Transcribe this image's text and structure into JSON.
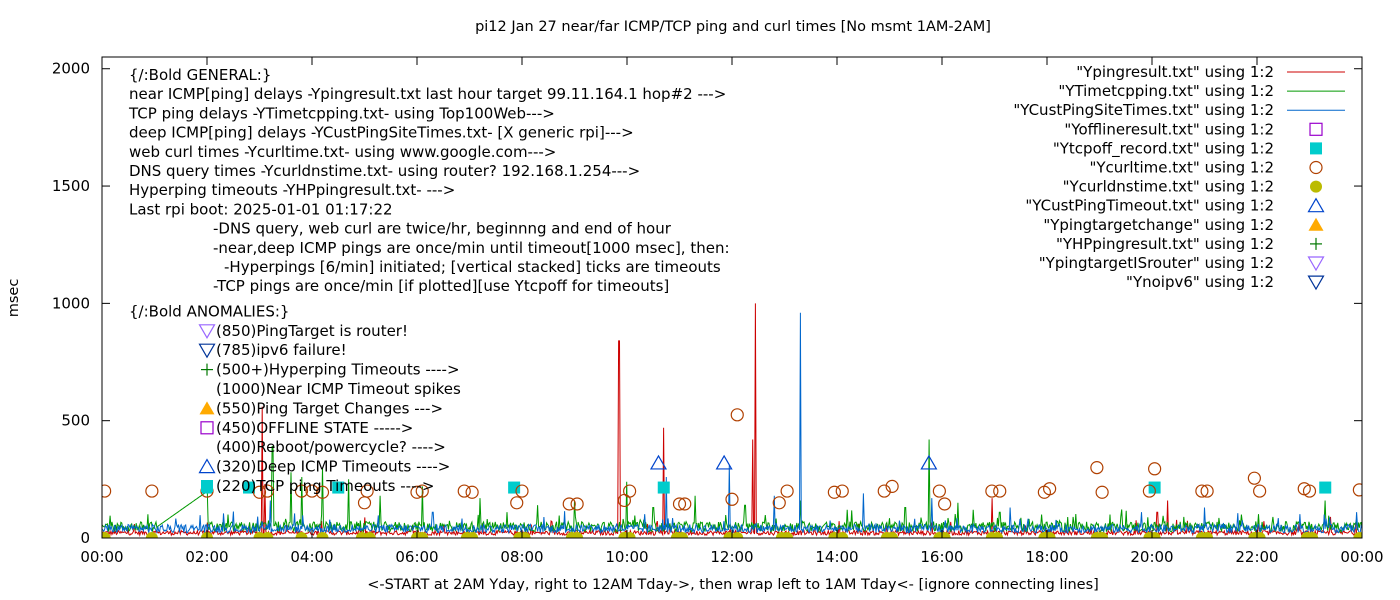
{
  "chart_data": {
    "type": "line",
    "title": "pi12  Jan 27  near/far ICMP/TCP ping and curl times [No msmt 1AM-2AM]",
    "xlabel": "<-START at 2AM Yday, right to 12AM Tday->, then wrap left to 1AM Tday<- [ignore connecting lines]",
    "ylabel": "msec",
    "xlim": [
      0,
      24
    ],
    "ylim": [
      0,
      2050
    ],
    "x_ticks": [
      "00:00",
      "02:00",
      "04:00",
      "06:00",
      "08:00",
      "10:00",
      "12:00",
      "14:00",
      "16:00",
      "18:00",
      "20:00",
      "22:00",
      "00:00"
    ],
    "y_ticks": [
      "0",
      "500",
      "1000",
      "1500",
      "2000"
    ],
    "legend_position": "top-right",
    "series": [
      {
        "name": "\"Ypingresult.txt\" using 1:2",
        "kind": "line",
        "color": "#cc0000",
        "baseline": 22,
        "spikes": [
          [
            3.05,
            560
          ],
          [
            3.1,
            230
          ],
          [
            9.85,
            840
          ],
          [
            10.7,
            470
          ],
          [
            12.45,
            1000
          ],
          [
            12.4,
            420
          ],
          [
            16.95,
            170
          ],
          [
            20.3,
            160
          ],
          [
            20.1,
            110
          ],
          [
            23.4,
            90
          ]
        ]
      },
      {
        "name": "\"YTimetcpping.txt\" using 1:2",
        "kind": "line",
        "color": "#009900",
        "baseline": 48,
        "spikes": [
          [
            0.1,
            60
          ],
          [
            2.0,
            200
          ],
          [
            2.4,
            100
          ],
          [
            3.25,
            390
          ],
          [
            3.6,
            280
          ],
          [
            3.8,
            260
          ],
          [
            4.2,
            300
          ],
          [
            4.7,
            250
          ],
          [
            5.3,
            180
          ],
          [
            6.1,
            220
          ],
          [
            7.2,
            170
          ],
          [
            8.3,
            140
          ],
          [
            9.0,
            160
          ],
          [
            10.0,
            240
          ],
          [
            10.5,
            130
          ],
          [
            11.3,
            180
          ],
          [
            12.25,
            140
          ],
          [
            13.3,
            160
          ],
          [
            14.2,
            120
          ],
          [
            15.3,
            130
          ],
          [
            15.75,
            420
          ],
          [
            16.3,
            150
          ],
          [
            16.6,
            120
          ],
          [
            17.1,
            110
          ],
          [
            17.9,
            100
          ],
          [
            18.5,
            90
          ],
          [
            19.2,
            100
          ],
          [
            20.6,
            90
          ],
          [
            21.7,
            100
          ],
          [
            22.3,
            90
          ],
          [
            23.3,
            160
          ],
          [
            23.9,
            80
          ]
        ]
      },
      {
        "name": "\"YCustPingSiteTimes.txt\" using 1:2",
        "kind": "line",
        "color": "#0066cc",
        "baseline": 40,
        "spikes": [
          [
            3.2,
            160
          ],
          [
            6.3,
            110
          ],
          [
            10.75,
            260
          ],
          [
            11.95,
            310
          ],
          [
            12.8,
            180
          ],
          [
            13.3,
            960
          ],
          [
            14.5,
            190
          ],
          [
            15.8,
            170
          ],
          [
            17.3,
            130
          ],
          [
            19.8,
            110
          ],
          [
            21.0,
            130
          ],
          [
            23.9,
            110
          ]
        ]
      },
      {
        "name": "\"Yofflineresult.txt\" using 1:2",
        "kind": "points",
        "symbol": "open-square",
        "color": "#9900cc",
        "points": []
      },
      {
        "name": "\"Ytcpoff_record.txt\" using 1:2",
        "kind": "points",
        "symbol": "filled-square",
        "color": "#00cccc",
        "points": [
          [
            2.0,
            215
          ],
          [
            2.8,
            215
          ],
          [
            4.5,
            215
          ],
          [
            7.85,
            215
          ],
          [
            10.7,
            215
          ],
          [
            20.05,
            215
          ],
          [
            23.3,
            215
          ]
        ]
      },
      {
        "name": "\"Ycurltime.txt\" using 1:2",
        "kind": "points",
        "symbol": "open-circle",
        "color": "#b04000",
        "points": [
          [
            0.05,
            200
          ],
          [
            0.95,
            200
          ],
          [
            2.0,
            200
          ],
          [
            3.0,
            195
          ],
          [
            3.15,
            200
          ],
          [
            3.8,
            200
          ],
          [
            4.0,
            200
          ],
          [
            4.2,
            195
          ],
          [
            5.0,
            150
          ],
          [
            5.05,
            200
          ],
          [
            6.0,
            195
          ],
          [
            6.1,
            200
          ],
          [
            6.9,
            200
          ],
          [
            7.05,
            195
          ],
          [
            7.9,
            150
          ],
          [
            8.0,
            200
          ],
          [
            8.9,
            145
          ],
          [
            9.05,
            145
          ],
          [
            9.95,
            160
          ],
          [
            10.05,
            200
          ],
          [
            11.0,
            145
          ],
          [
            11.1,
            145
          ],
          [
            12.0,
            165
          ],
          [
            12.1,
            525
          ],
          [
            12.9,
            150
          ],
          [
            13.05,
            200
          ],
          [
            13.95,
            195
          ],
          [
            14.1,
            200
          ],
          [
            14.9,
            200
          ],
          [
            15.05,
            220
          ],
          [
            15.95,
            200
          ],
          [
            16.05,
            145
          ],
          [
            16.95,
            200
          ],
          [
            17.1,
            200
          ],
          [
            17.95,
            195
          ],
          [
            18.05,
            210
          ],
          [
            18.95,
            300
          ],
          [
            19.05,
            195
          ],
          [
            19.95,
            200
          ],
          [
            20.05,
            295
          ],
          [
            20.95,
            200
          ],
          [
            21.05,
            200
          ],
          [
            21.95,
            255
          ],
          [
            22.05,
            200
          ],
          [
            22.9,
            210
          ],
          [
            23.0,
            200
          ],
          [
            23.95,
            205
          ]
        ]
      },
      {
        "name": "\"Ycurldnstime.txt\" using 1:2",
        "kind": "points",
        "symbol": "filled-circle",
        "color": "#bbbb00",
        "points": [
          [
            0.05,
            0
          ],
          [
            0.95,
            0
          ],
          [
            2.0,
            0
          ],
          [
            3.0,
            0
          ],
          [
            3.15,
            0
          ],
          [
            3.8,
            0
          ],
          [
            4.2,
            0
          ],
          [
            4.95,
            0
          ],
          [
            5.1,
            0
          ],
          [
            6.0,
            0
          ],
          [
            6.1,
            0
          ],
          [
            6.95,
            0
          ],
          [
            7.05,
            0
          ],
          [
            7.95,
            0
          ],
          [
            8.05,
            0
          ],
          [
            8.95,
            0
          ],
          [
            9.05,
            0
          ],
          [
            9.95,
            0
          ],
          [
            10.05,
            0
          ],
          [
            10.95,
            0
          ],
          [
            11.05,
            0
          ],
          [
            11.95,
            0
          ],
          [
            12.1,
            0
          ],
          [
            12.95,
            0
          ],
          [
            13.05,
            0
          ],
          [
            13.95,
            0
          ],
          [
            14.1,
            0
          ],
          [
            14.95,
            0
          ],
          [
            15.05,
            0
          ],
          [
            15.95,
            0
          ],
          [
            16.05,
            0
          ],
          [
            16.95,
            0
          ],
          [
            17.05,
            0
          ],
          [
            17.95,
            0
          ],
          [
            18.05,
            0
          ],
          [
            18.95,
            0
          ],
          [
            19.05,
            0
          ],
          [
            19.95,
            0
          ],
          [
            20.05,
            0
          ],
          [
            20.95,
            0
          ],
          [
            21.05,
            0
          ],
          [
            21.95,
            0
          ],
          [
            22.05,
            0
          ],
          [
            22.95,
            0
          ],
          [
            23.05,
            0
          ],
          [
            23.95,
            0
          ]
        ]
      },
      {
        "name": "\"YCustPingTimeout.txt\" using 1:2",
        "kind": "points",
        "symbol": "open-triangle-up",
        "color": "#0044cc",
        "points": [
          [
            10.6,
            320
          ],
          [
            11.85,
            320
          ],
          [
            15.75,
            320
          ]
        ]
      },
      {
        "name": "\"Ypingtargetchange\" using 1:2",
        "kind": "points",
        "symbol": "filled-triangle-up",
        "color": "#ffaa00",
        "points": []
      },
      {
        "name": "\"YHPpingresult.txt\" using 1:2",
        "kind": "points",
        "symbol": "plus",
        "color": "#007700",
        "points": []
      },
      {
        "name": "\"YpingtargetISrouter\" using 1:2",
        "kind": "points",
        "symbol": "open-triangle-down",
        "color": "#9966ff",
        "points": []
      },
      {
        "name": "\"Ynoipv6\" using 1:2",
        "kind": "points",
        "symbol": "open-triangle-down",
        "color": "#003399",
        "points": []
      }
    ],
    "annotations": {
      "general": [
        "{/:Bold GENERAL:}",
        "near ICMP[ping] delays -Ypingresult.txt last hour target 99.11.164.1 hop#2 --->",
        "TCP ping delays -YTimetcpping.txt- using Top100Web--->",
        "deep ICMP[ping] delays -YCustPingSiteTimes.txt- [X generic rpi]--->",
        "web curl times -Ycurltime.txt- using www.google.com--->",
        "DNS query times -Ycurldnstime.txt- using router? 192.168.1.254--->",
        "Hyperping timeouts -YHPpingresult.txt- --->",
        "Last rpi boot: 2025-01-01 01:17:22"
      ],
      "notes": [
        "-DNS query, web curl are twice/hr, beginnng and end of hour",
        "-near,deep ICMP pings are once/min until timeout[1000 msec], then:",
        "-Hyperpings [6/min] initiated; [vertical stacked] ticks are timeouts",
        "-TCP pings are once/min [if plotted][use Ytcpoff for timeouts]"
      ],
      "anomalies_title": "{/:Bold ANOMALIES:}",
      "anomalies": [
        {
          "symbol": "open-triangle-down",
          "color": "#9966ff",
          "text": "(850)PingTarget is router!"
        },
        {
          "symbol": "open-triangle-down",
          "color": "#003399",
          "text": "(785)ipv6 failure!"
        },
        {
          "symbol": "plus",
          "color": "#007700",
          "text": "(500+)Hyperping Timeouts ---->"
        },
        {
          "symbol": "none",
          "color": "#000000",
          "text": "(1000)Near ICMP Timeout spikes"
        },
        {
          "symbol": "filled-triangle-up",
          "color": "#ffaa00",
          "text": "(550)Ping Target Changes --->"
        },
        {
          "symbol": "open-square",
          "color": "#9900cc",
          "text": "(450)OFFLINE STATE ----->"
        },
        {
          "symbol": "none",
          "color": "#000000",
          "text": "(400)Reboot/powercycle? ---->"
        },
        {
          "symbol": "open-triangle-up",
          "color": "#0044cc",
          "text": "(320)Deep ICMP Timeouts ---->"
        },
        {
          "symbol": "filled-square",
          "color": "#00cccc",
          "text": "(220)TCP ping Timeouts ---->"
        }
      ]
    }
  }
}
